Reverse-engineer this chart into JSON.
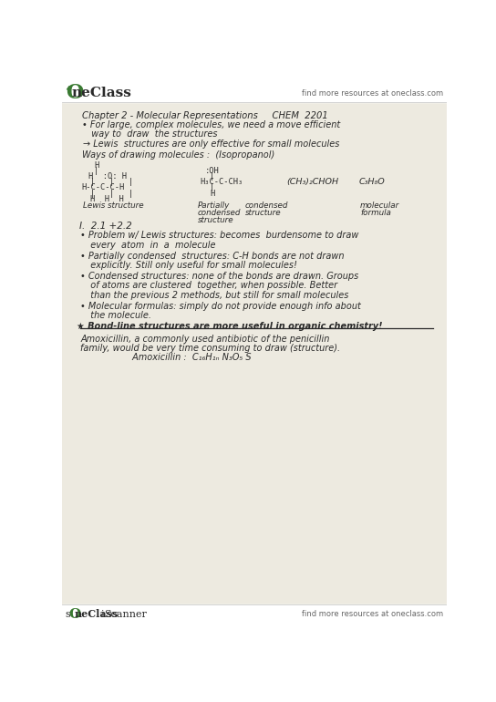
{
  "page_bg": "#e8e4d8",
  "white": "#ffffff",
  "oneclass_green": "#3a7a32",
  "text_color": "#1a1a1a",
  "gray_text": "#666666",
  "header_line_color": "#cccccc",
  "ink_color": "#2a2a2a",
  "footer_text": "find more resources at oneclass.com",
  "header_right": "find more resources at oneclass.com",
  "title": "Chapter 2 - Molecular Representations     CHEM  2201",
  "bullet1a": "• For large, complex molecules, we need a move efficient",
  "bullet1b": "  way to  draw  the structures",
  "arrow_line": "→ Lewis  structures are only effective for small molecules",
  "ways_line": "Ways of drawing molecules :  (Isopropanol)",
  "label_lewis": "Lewis structure",
  "label_part1": "Partially",
  "label_part2": "condensed",
  "label_part3": "structure",
  "label_cond1": "condensed",
  "label_cond2": "structure",
  "label_mol1": "molecular",
  "label_mol2": "formula",
  "section": "I.  2.1 +2.2",
  "b1a": "• Problem w/ Lewis structures: becomes  burdensome to draw",
  "b1b": "  every  atom  in  a  molecule",
  "b2a": "• Partially condensed  structures: C-H bonds are not drawn",
  "b2b": "  explicitly. Still only useful for small molecules!",
  "b3a": "• Condensed structures: none of the bonds are drawn. Groups",
  "b3b": "  of atoms are clustered  together, when possible. Better",
  "b3c": "  than the previous 2 methods, but still for small molecules",
  "b4a": "• Molecular formulas: simply do not provide enough info about",
  "b4b": "  the molecule.",
  "star_line": "★ Bond-line structures are more useful in organic chemistry!",
  "amox1": "Amoxicillin, a commonly used antibiotic of the penicillin",
  "amox2": "family, would be very time consuming to draw (structure).",
  "amox3": "         Amoxicillin :  C₁₆H₁ₙ N₃O₅ S"
}
